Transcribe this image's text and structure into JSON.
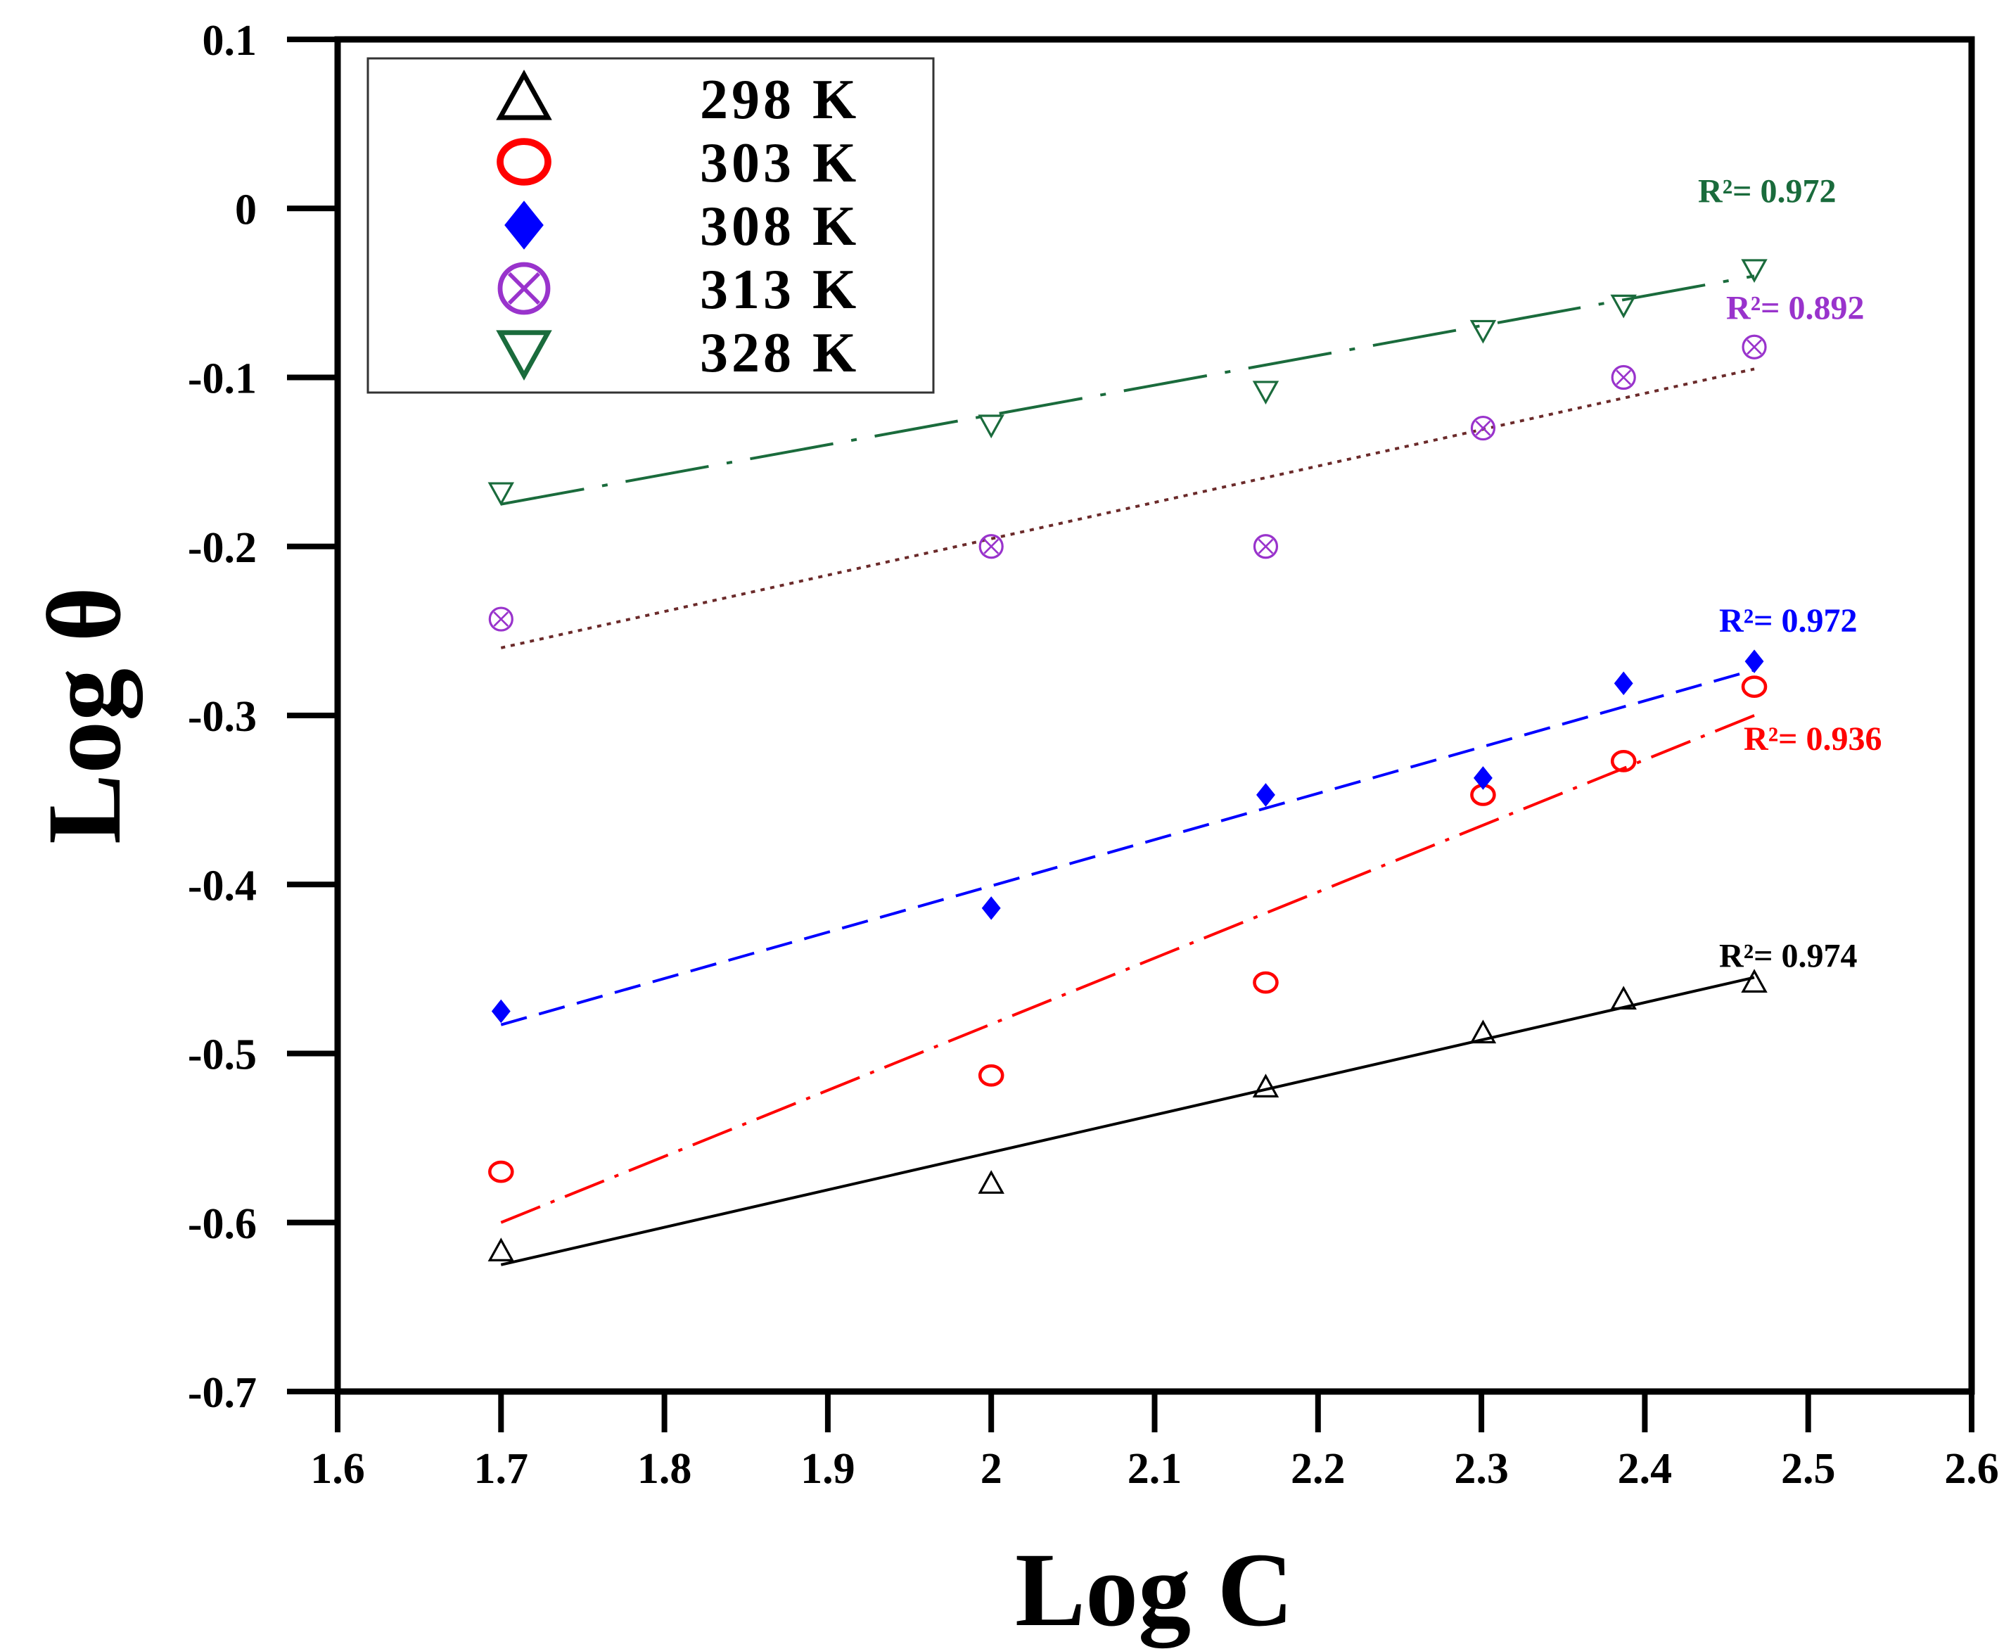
{
  "chart_data": {
    "type": "scatter",
    "title": "",
    "xlabel": "Log C",
    "ylabel": "Log θ",
    "xlim": [
      1.6,
      2.6
    ],
    "ylim": [
      -0.7,
      0.1
    ],
    "xticks": [
      1.6,
      1.7,
      1.8,
      1.9,
      2.0,
      2.1,
      2.2,
      2.3,
      2.4,
      2.5,
      2.6
    ],
    "xtick_labels": [
      "1.6",
      "1.7",
      "1.8",
      "1.9",
      "2",
      "2.1",
      "2.2",
      "2.3",
      "2.4",
      "2.5",
      "2.6"
    ],
    "yticks": [
      0.1,
      0,
      -0.1,
      -0.2,
      -0.3,
      -0.4,
      -0.5,
      -0.6,
      -0.7
    ],
    "ytick_labels": [
      "0.1",
      "0",
      "-0.1",
      "-0.2",
      "-0.3",
      "-0.4",
      "-0.5",
      "-0.6",
      "-0.7"
    ],
    "grid": false,
    "legend_position": "top-left",
    "series": [
      {
        "key": "k298",
        "name": "298 K",
        "marker": "triangle-up",
        "color": "#000000",
        "line_style": "solid",
        "x": [
          1.7,
          2.0,
          2.168,
          2.301,
          2.387,
          2.467
        ],
        "y": [
          -0.617,
          -0.577,
          -0.52,
          -0.488,
          -0.468,
          -0.458
        ],
        "fit": {
          "x": [
            1.7,
            2.467
          ],
          "y": [
            -0.625,
            -0.455
          ]
        },
        "r2_label": "R²=  0.974",
        "r2_position": "right"
      },
      {
        "key": "k303",
        "name": "303 K",
        "marker": "circle-open",
        "color": "#ff0000",
        "line_style": "dash-dot",
        "x": [
          1.7,
          2.0,
          2.168,
          2.301,
          2.387,
          2.467
        ],
        "y": [
          -0.57,
          -0.513,
          -0.458,
          -0.347,
          -0.327,
          -0.283
        ],
        "fit": {
          "x": [
            1.7,
            2.467
          ],
          "y": [
            -0.6,
            -0.3
          ]
        },
        "r2_label": "R²= 0.936",
        "r2_position": "right"
      },
      {
        "key": "k308",
        "name": "308 K",
        "marker": "diamond-filled",
        "color": "#0000ff",
        "line_style": "dashed",
        "x": [
          1.7,
          2.0,
          2.168,
          2.301,
          2.387,
          2.467
        ],
        "y": [
          -0.475,
          -0.414,
          -0.347,
          -0.337,
          -0.281,
          -0.268
        ],
        "fit": {
          "x": [
            1.7,
            2.467
          ],
          "y": [
            -0.483,
            -0.273
          ]
        },
        "r2_label": "R²=  0.972",
        "r2_position": "right"
      },
      {
        "key": "k313",
        "name": "313 K",
        "marker": "circle-x",
        "color": "#9933cc",
        "line_color": "#6b2a2a",
        "line_style": "dotted",
        "x": [
          1.7,
          2.0,
          2.168,
          2.301,
          2.387,
          2.467
        ],
        "y": [
          -0.243,
          -0.2,
          -0.2,
          -0.13,
          -0.1,
          -0.082
        ],
        "fit": {
          "x": [
            1.7,
            2.467
          ],
          "y": [
            -0.26,
            -0.095
          ]
        },
        "r2_label": "R²=  0.892",
        "r2_position": "right"
      },
      {
        "key": "k328",
        "name": "328 K",
        "marker": "triangle-down",
        "color": "#1a6b3c",
        "line_style": "long-dash-dot",
        "x": [
          1.7,
          2.0,
          2.168,
          2.301,
          2.387,
          2.467
        ],
        "y": [
          -0.168,
          -0.128,
          -0.108,
          -0.072,
          -0.057,
          -0.036
        ],
        "fit": {
          "x": [
            1.7,
            2.467
          ],
          "y": [
            -0.175,
            -0.04
          ]
        },
        "r2_label": "R²=   0.972",
        "r2_position": "top-right"
      }
    ]
  }
}
